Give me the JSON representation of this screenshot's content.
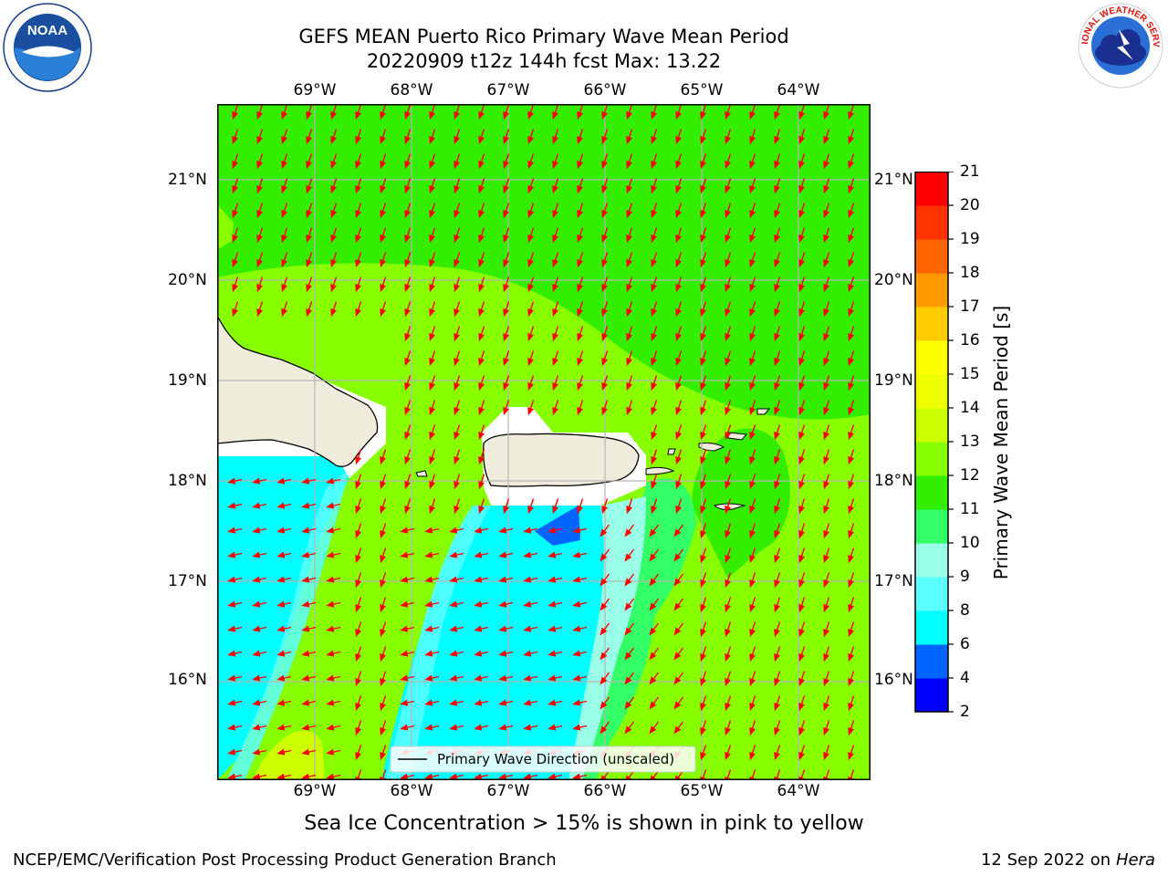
{
  "title_line1": "GEFS MEAN Puerto Rico Primary Wave Mean Period",
  "title_line2": "20220909 t12z 144h fcst   Max: 13.22",
  "lon_labels": [
    "69°W",
    "68°W",
    "67°W",
    "66°W",
    "65°W",
    "64°W"
  ],
  "lat_labels": [
    "21°N",
    "20°N",
    "19°N",
    "18°N",
    "17°N",
    "16°N"
  ],
  "legend_label": "Primary Wave Direction (unscaled)",
  "colorbar": {
    "title": "Primary Wave Mean Period [s]",
    "ticks": [
      "2",
      "4",
      "6",
      "8",
      "9",
      "10",
      "11",
      "12",
      "13",
      "14",
      "15",
      "16",
      "17",
      "18",
      "19",
      "20",
      "21"
    ],
    "colors": [
      "#0000ff",
      "#0064ff",
      "#00ffff",
      "#5cffff",
      "#99ffe6",
      "#33ff66",
      "#33ee00",
      "#88ff00",
      "#ccff00",
      "#eeff00",
      "#ffff00",
      "#ffcc00",
      "#ff9900",
      "#ff6600",
      "#ff3300",
      "#ff0000"
    ]
  },
  "subtitle": "Sea Ice Concentration > 15% is shown in pink to yellow",
  "footer_left": "NCEP/EMC/Verification Post Processing Product Generation Branch",
  "footer_date": "12 Sep 2022 on",
  "footer_machine": "Hera",
  "logos": {
    "left": "NOAA",
    "right": "NATIONAL WEATHER SERVICE"
  }
}
